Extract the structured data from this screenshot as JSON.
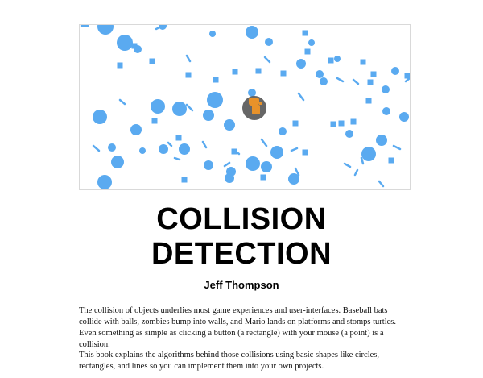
{
  "hero": {
    "ball_color": "#5aaaf0",
    "player_fill": "#555555",
    "player_icon_color": "#e8922a"
  },
  "title": {
    "line1": "COLLISION",
    "line2": "DETECTION"
  },
  "author": "Jeff Thompson",
  "paragraphs": [
    "The collision of objects underlies most game experiences and user-interfaces. Baseball bats collide with balls, zombies bump into walls, and Mario lands on platforms and stomps turtles. Even something as simple as clicking a button (a rectangle) with your mouse (a point) is a collision.",
    "This book explains the algorithms behind those collisions using basic shapes like circles, rectangles, and lines so you can implement them into your own projects."
  ]
}
